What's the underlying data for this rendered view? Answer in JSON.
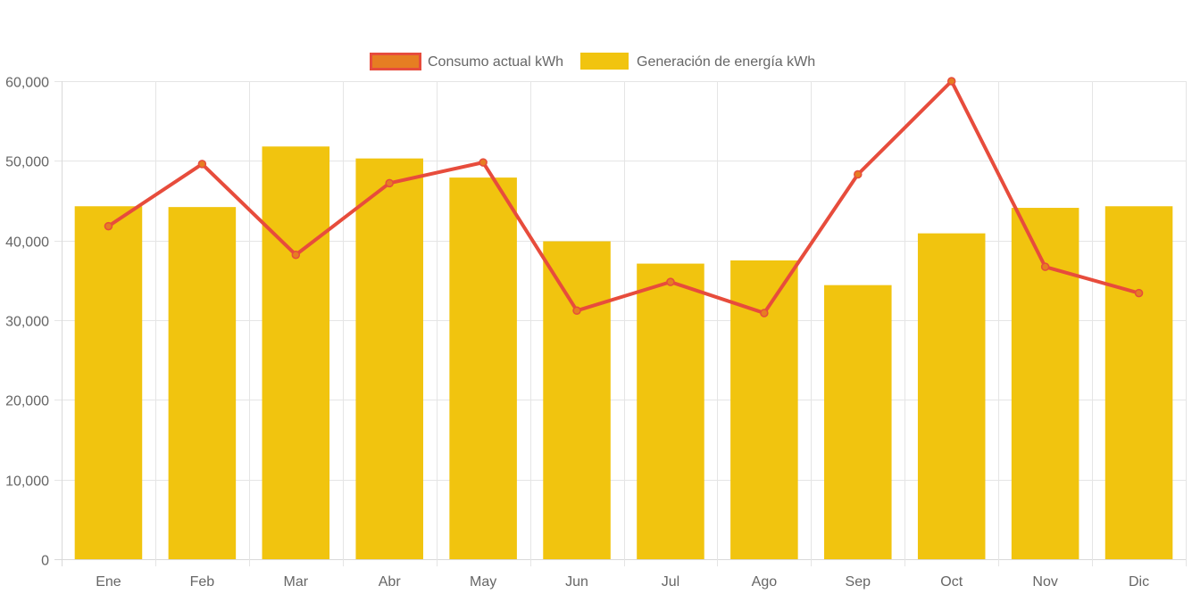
{
  "chart_data": {
    "type": "bar",
    "categories": [
      "Ene",
      "Feb",
      "Mar",
      "Abr",
      "May",
      "Jun",
      "Jul",
      "Ago",
      "Sep",
      "Oct",
      "Nov",
      "Dic"
    ],
    "series": [
      {
        "name": "Consumo actual kWh",
        "type": "line",
        "color": "#e74c3c",
        "point_color": "#e67e22",
        "values": [
          41800,
          49600,
          38200,
          47200,
          49800,
          31200,
          34800,
          30900,
          48300,
          60000,
          36700,
          33400
        ]
      },
      {
        "name": "Generación de energía kWh",
        "type": "bar",
        "color": "#f1c40f",
        "values": [
          44300,
          44200,
          51800,
          50300,
          47900,
          39900,
          37100,
          37500,
          34400,
          40900,
          44100,
          44300
        ]
      }
    ],
    "yticks": [
      "0",
      "10,000",
      "20,000",
      "30,000",
      "40,000",
      "50,000",
      "60,000"
    ],
    "ylim": [
      0,
      60000
    ],
    "grid": true,
    "legend_position": "top-center"
  }
}
